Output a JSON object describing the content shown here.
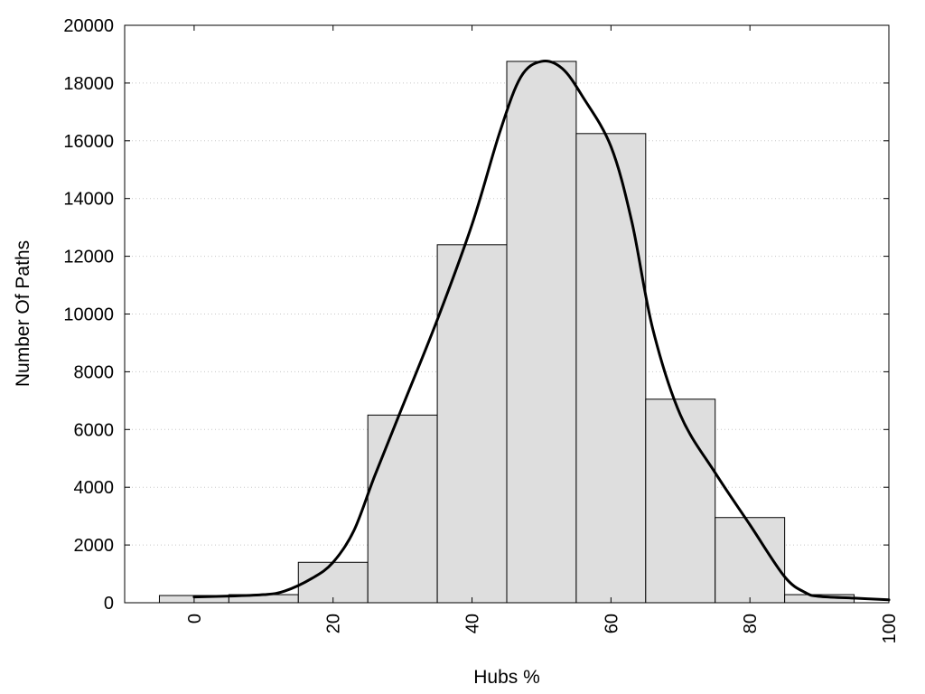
{
  "chart_data": {
    "type": "bar",
    "title": "",
    "xlabel": "Hubs %",
    "ylabel": "Number Of Paths",
    "x_bin_width": 10,
    "x_bin_centers": [
      0,
      10,
      20,
      30,
      40,
      50,
      60,
      70,
      80,
      90
    ],
    "values": [
      250,
      280,
      1400,
      6500,
      12400,
      18750,
      16250,
      7050,
      2950,
      280
    ],
    "xlim": [
      -10,
      100
    ],
    "ylim": [
      0,
      20000
    ],
    "x_ticks": [
      0,
      20,
      40,
      60,
      80,
      100
    ],
    "y_ticks": [
      0,
      2000,
      4000,
      6000,
      8000,
      10000,
      12000,
      14000,
      16000,
      18000,
      20000
    ],
    "grid": "horizontal dotted",
    "density_curve": {
      "x": [
        0,
        5,
        10,
        13,
        17,
        20,
        23,
        26,
        30,
        35,
        40,
        44,
        47,
        50,
        53,
        56,
        60,
        63,
        66,
        70,
        75,
        80,
        85,
        88,
        90,
        95,
        100
      ],
      "y": [
        200,
        230,
        280,
        400,
        850,
        1400,
        2500,
        4400,
        6800,
        9800,
        13100,
        16300,
        18200,
        18750,
        18500,
        17500,
        15800,
        13200,
        9500,
        6500,
        4500,
        2700,
        900,
        350,
        220,
        160,
        100
      ]
    },
    "colors": {
      "bar_fill": "#dedede",
      "bar_stroke": "#000000",
      "curve": "#000000"
    }
  }
}
